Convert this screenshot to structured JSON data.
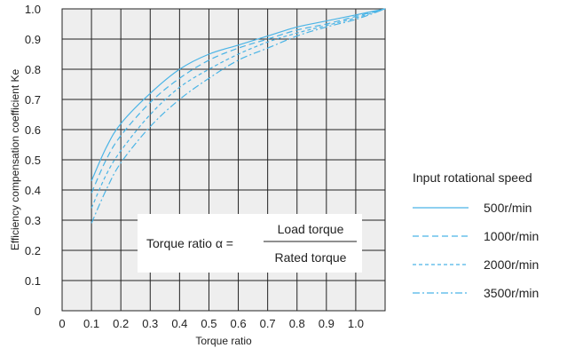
{
  "chart_data": {
    "type": "line",
    "title": "",
    "xlabel": "Torque ratio",
    "ylabel": "Efficiency compensation coefficient Ke",
    "xlim": [
      0,
      1.1
    ],
    "ylim": [
      0,
      1.0
    ],
    "grid": true,
    "x_ticks": [
      "0",
      "0.1",
      "0.2",
      "0.3",
      "0.4",
      "0.5",
      "0.6",
      "0.7",
      "0.8",
      "0.9",
      "1.0"
    ],
    "y_ticks": [
      "0",
      "0.1",
      "0.2",
      "0.3",
      "0.4",
      "0.5",
      "0.6",
      "0.7",
      "0.8",
      "0.9",
      "1.0"
    ],
    "legend_title": "Input rotational speed",
    "legend_position": "right",
    "series": [
      {
        "name": "500r/min",
        "style": "solid",
        "color": "#4ab4e6",
        "x": [
          0.1,
          0.15,
          0.2,
          0.3,
          0.4,
          0.5,
          0.6,
          0.7,
          0.8,
          0.9,
          1.0,
          1.1
        ],
        "y": [
          0.43,
          0.54,
          0.62,
          0.72,
          0.8,
          0.85,
          0.88,
          0.91,
          0.94,
          0.96,
          0.98,
          1.0
        ]
      },
      {
        "name": "1000r/min",
        "style": "dash",
        "color": "#4ab4e6",
        "x": [
          0.1,
          0.15,
          0.2,
          0.3,
          0.4,
          0.5,
          0.6,
          0.7,
          0.8,
          0.9,
          1.0,
          1.1
        ],
        "y": [
          0.39,
          0.5,
          0.58,
          0.69,
          0.77,
          0.83,
          0.87,
          0.9,
          0.93,
          0.95,
          0.975,
          1.0
        ]
      },
      {
        "name": "2000r/min",
        "style": "short-dash",
        "color": "#4ab4e6",
        "x": [
          0.1,
          0.15,
          0.2,
          0.3,
          0.4,
          0.5,
          0.6,
          0.7,
          0.8,
          0.9,
          1.0,
          1.1
        ],
        "y": [
          0.34,
          0.45,
          0.53,
          0.65,
          0.74,
          0.8,
          0.85,
          0.89,
          0.92,
          0.945,
          0.97,
          1.0
        ]
      },
      {
        "name": "3500r/min",
        "style": "dash-dot",
        "color": "#4ab4e6",
        "x": [
          0.1,
          0.15,
          0.2,
          0.3,
          0.4,
          0.5,
          0.6,
          0.7,
          0.8,
          0.9,
          1.0,
          1.1
        ],
        "y": [
          0.29,
          0.4,
          0.49,
          0.61,
          0.7,
          0.77,
          0.83,
          0.87,
          0.91,
          0.94,
          0.965,
          1.0
        ]
      }
    ],
    "annotation": {
      "label": "Torque ratio α =",
      "numerator": "Load torque",
      "denominator": "Rated torque"
    }
  }
}
